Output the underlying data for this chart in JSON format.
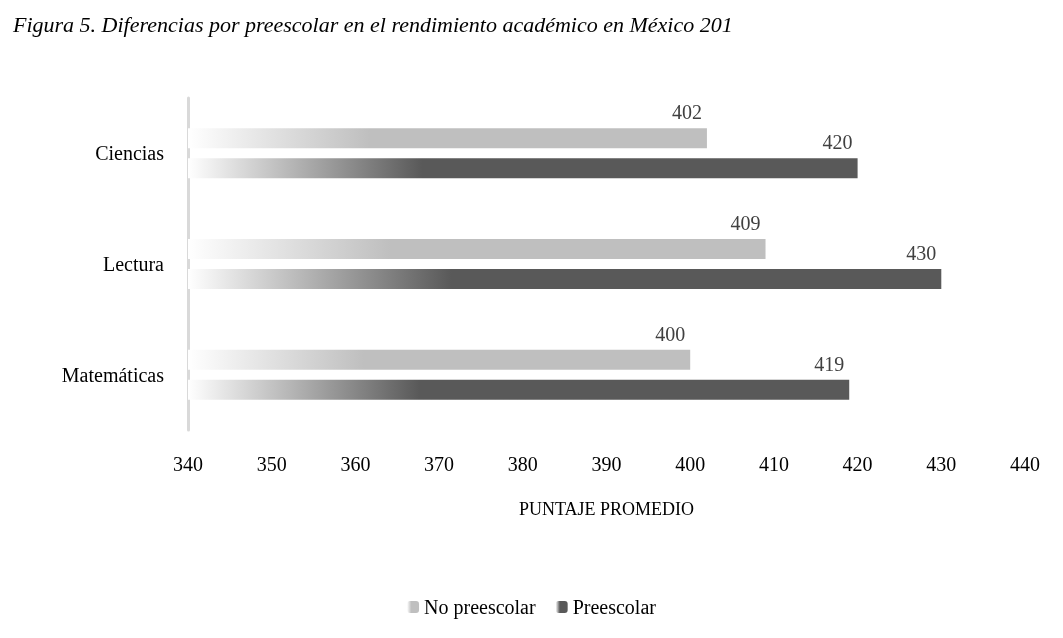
{
  "chart_data": {
    "type": "bar",
    "orientation": "horizontal",
    "title": "Figura 5. Diferencias por preescolar en el rendimiento académico en México 201",
    "xlabel": "PUNTAJE PROMEDIO",
    "categories": [
      "Ciencias",
      "Lectura",
      "Matemáticas"
    ],
    "series": [
      {
        "name": "No preescolar",
        "color": "#bfbfbf",
        "values": [
          402,
          409,
          400
        ]
      },
      {
        "name": "Preescolar",
        "color": "#595959",
        "values": [
          420,
          430,
          419
        ]
      }
    ],
    "xlim": [
      340,
      440
    ],
    "xticks": [
      340,
      350,
      360,
      370,
      380,
      390,
      400,
      410,
      420,
      430,
      440
    ],
    "data_labels": true,
    "grid": false,
    "legend": "bottom"
  }
}
